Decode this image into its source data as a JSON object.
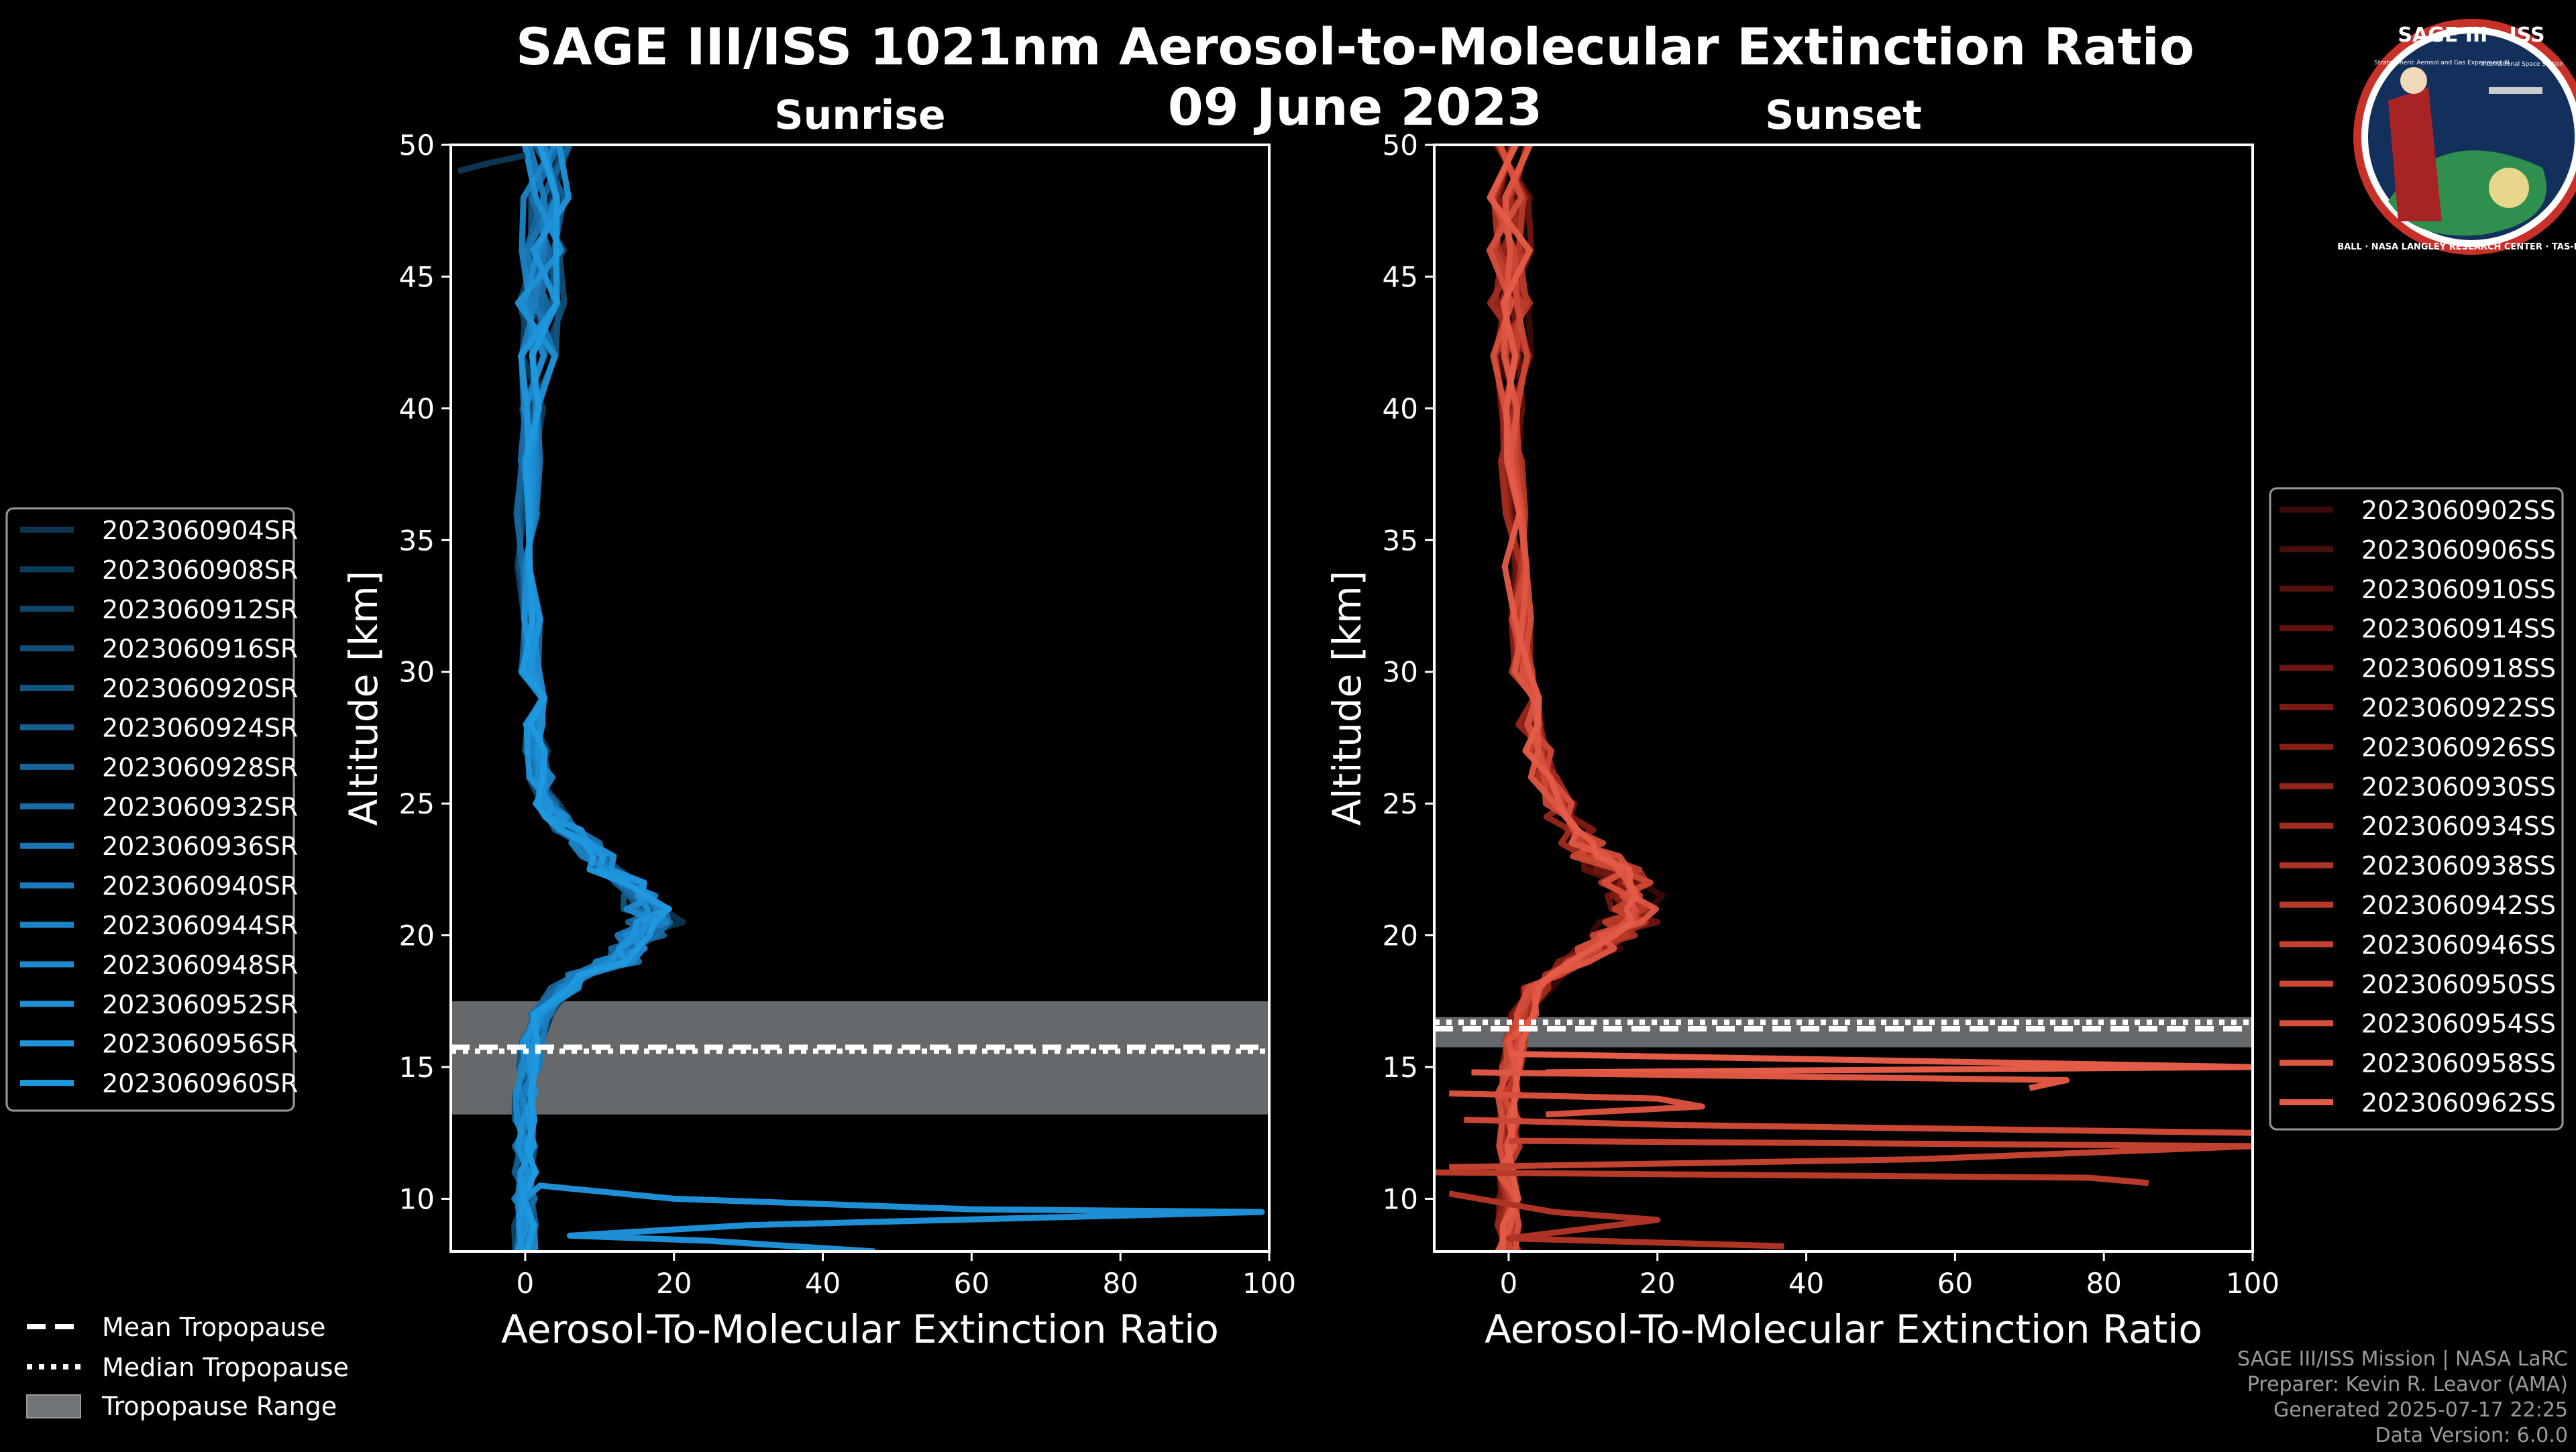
{
  "title": "SAGE III/ISS 1021nm Aerosol-to-Molecular Extinction Ratio",
  "date": "09 June 2023",
  "logo": {
    "top_text": "SAGE III · ISS",
    "ring_text": "BALL · NASA LANGLEY RESEARCH CENTER · TAS-I · ESA",
    "subtitle": "Stratospheric Aerosol and Gas Experiment III",
    "side_text": "International Space Station"
  },
  "legend_common": {
    "mean": "Mean Tropopause",
    "median": "Median Tropopause",
    "range": "Tropopause Range"
  },
  "footer": {
    "line1": "SAGE III/ISS Mission | NASA LaRC",
    "line2": "Preparer: Kevin R. Leavor (AMA)",
    "line3": "Generated 2025-07-17 22:25",
    "line4": "Data Version: 6.0.0"
  },
  "colors": {
    "background": "#000000",
    "sunrise": "#1a8fd0",
    "sunset": "#e8564a",
    "tropopause_range": "#707477",
    "axis": "#ffffff"
  },
  "chart_data": [
    {
      "type": "line",
      "title": "Sunrise",
      "xlabel": "Aerosol-To-Molecular Extinction Ratio",
      "ylabel": "Altitude [km]",
      "xlim": [
        -10,
        100
      ],
      "ylim": [
        8,
        50
      ],
      "xticks": [
        0,
        20,
        40,
        60,
        80,
        100
      ],
      "yticks": [
        10,
        15,
        20,
        25,
        30,
        35,
        40,
        45,
        50
      ],
      "legend_position": "left",
      "tropopause": {
        "mean": 15.75,
        "median": 15.6,
        "range": [
          13.2,
          17.5
        ]
      },
      "series_names": [
        "2023060904SR",
        "2023060908SR",
        "2023060912SR",
        "2023060916SR",
        "2023060920SR",
        "2023060924SR",
        "2023060928SR",
        "2023060932SR",
        "2023060936SR",
        "2023060940SR",
        "2023060944SR",
        "2023060948SR",
        "2023060952SR",
        "2023060956SR",
        "2023060960SR"
      ],
      "series_colors": [
        "#0b3550",
        "#0d3d5c",
        "#0f4568",
        "#114d75",
        "#135581",
        "#155d8d",
        "#17659a",
        "#186da6",
        "#1a75b2",
        "#1b7cbd",
        "#1c83c6",
        "#1d89ce",
        "#1e8fd4",
        "#1f94da",
        "#1f99df"
      ],
      "base_profile": {
        "altitude": [
          8,
          9,
          10,
          11,
          12,
          13,
          14,
          15,
          16,
          17,
          18,
          18.5,
          19,
          19.5,
          20,
          20.5,
          21,
          21.5,
          22,
          22.5,
          23,
          23.5,
          24,
          24.5,
          25,
          26,
          27,
          28,
          29,
          30,
          32,
          34,
          36,
          38,
          40,
          42,
          44,
          46,
          48,
          50
        ],
        "ratio": [
          0,
          0,
          0,
          0,
          0,
          0,
          0,
          0.5,
          1,
          2,
          5,
          8,
          12,
          14,
          16,
          17,
          17,
          16,
          14,
          12,
          10,
          8,
          6,
          4,
          3,
          2,
          1.5,
          1.2,
          1,
          0.5,
          0.5,
          0.3,
          0.2,
          0.5,
          1,
          2,
          2,
          2,
          3,
          3
        ]
      },
      "outliers": [
        {
          "series": "2023060952SR",
          "altitude": [
            10,
            10.5,
            10.0,
            9.6,
            9.5,
            9.0,
            8.6,
            8.4,
            8.0
          ],
          "ratio": [
            0,
            2,
            20,
            60,
            99,
            30,
            6,
            25,
            47
          ]
        },
        {
          "series": "2023060904SR",
          "altitude": [
            49.0,
            49.3,
            49.6
          ],
          "ratio": [
            -9,
            -5,
            0
          ]
        }
      ]
    },
    {
      "type": "line",
      "title": "Sunset",
      "xlabel": "Aerosol-To-Molecular Extinction Ratio",
      "ylabel": "Altitude [km]",
      "xlim": [
        -10,
        100
      ],
      "ylim": [
        8,
        50
      ],
      "xticks": [
        0,
        20,
        40,
        60,
        80,
        100
      ],
      "yticks": [
        10,
        15,
        20,
        25,
        30,
        35,
        40,
        45,
        50
      ],
      "legend_position": "right",
      "tropopause": {
        "mean": 16.45,
        "median": 16.7,
        "range": [
          15.75,
          16.9
        ]
      },
      "series_names": [
        "2023060902SS",
        "2023060906SS",
        "2023060910SS",
        "2023060914SS",
        "2023060918SS",
        "2023060922SS",
        "2023060926SS",
        "2023060930SS",
        "2023060934SS",
        "2023060938SS",
        "2023060942SS",
        "2023060946SS",
        "2023060950SS",
        "2023060954SS",
        "2023060958SS",
        "2023060962SS"
      ],
      "series_colors": [
        "#3a0a08",
        "#470d0a",
        "#54100c",
        "#61130e",
        "#6e1610",
        "#7b1a13",
        "#882016",
        "#95261a",
        "#a12c1f",
        "#ad3324",
        "#b83a29",
        "#c2412f",
        "#cc4835",
        "#d54f3c",
        "#dd5642",
        "#e45c48"
      ],
      "base_profile": {
        "altitude": [
          8,
          9,
          10,
          11,
          12,
          13,
          14,
          15,
          16,
          17,
          18,
          18.5,
          19,
          19.5,
          20,
          20.5,
          21,
          21.5,
          22,
          22.5,
          23,
          23.5,
          24,
          24.5,
          25,
          26,
          27,
          28,
          29,
          30,
          32,
          34,
          36,
          38,
          40,
          42,
          44,
          46,
          48,
          50
        ],
        "ratio": [
          0,
          0,
          0,
          0,
          0,
          0,
          0,
          0.5,
          1,
          2,
          4,
          6,
          9,
          12,
          14,
          16,
          17,
          17,
          16,
          14,
          12,
          10,
          9,
          8,
          7,
          5,
          4,
          3,
          2.5,
          2,
          1.5,
          1,
          1,
          0.5,
          0.5,
          0.5,
          0.5,
          0.3,
          0.3,
          0.3
        ]
      },
      "outliers": [
        {
          "series": "2023060962SS",
          "altitude": [
            15.5,
            15.2,
            15.0,
            14.8
          ],
          "ratio": [
            0,
            60,
            100,
            5
          ]
        },
        {
          "series": "2023060958SS",
          "altitude": [
            14.8,
            14.5,
            14.2
          ],
          "ratio": [
            -5,
            75,
            70
          ]
        },
        {
          "series": "2023060954SS",
          "altitude": [
            14.0,
            13.8,
            13.5,
            13.2
          ],
          "ratio": [
            -8,
            20,
            26,
            5
          ]
        },
        {
          "series": "2023060950SS",
          "altitude": [
            13.0,
            12.8,
            12.5
          ],
          "ratio": [
            -6,
            22,
            100
          ]
        },
        {
          "series": "2023060946SS",
          "altitude": [
            12.2,
            12.0,
            11.5,
            11.2
          ],
          "ratio": [
            0,
            100,
            55,
            -8
          ]
        },
        {
          "series": "2023060942SS",
          "altitude": [
            11.0,
            10.8,
            10.6
          ],
          "ratio": [
            -10,
            78,
            86
          ]
        },
        {
          "series": "2023060938SS",
          "altitude": [
            10.2,
            9.5,
            9.2,
            8.5,
            8.2
          ],
          "ratio": [
            -8,
            6,
            20,
            0,
            37
          ]
        }
      ]
    }
  ]
}
